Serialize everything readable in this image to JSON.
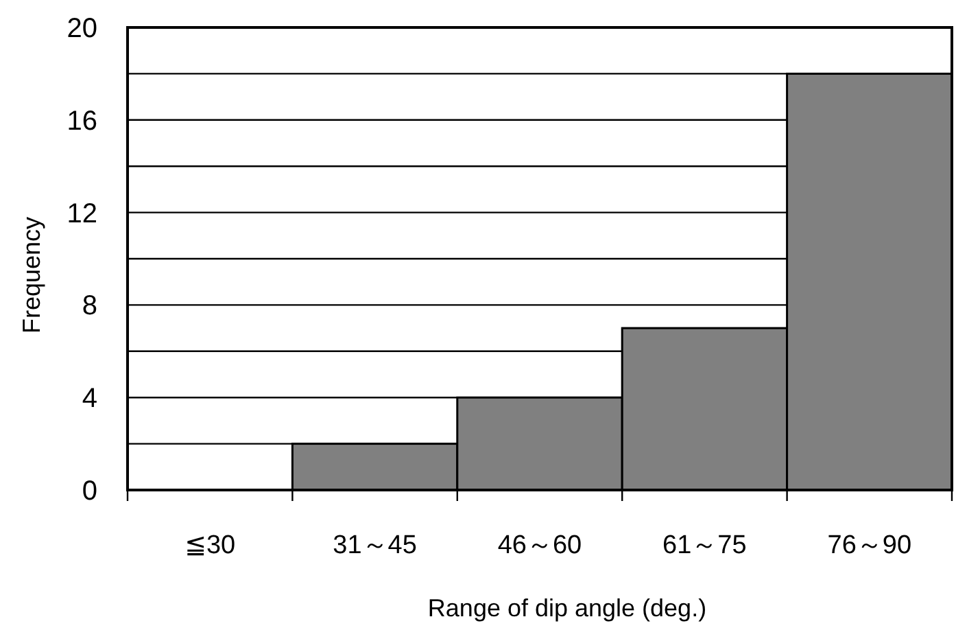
{
  "chart_data": {
    "type": "bar",
    "xlabel": "Range of dip angle (deg.)",
    "ylabel": "Frequency",
    "categories": [
      "≦30",
      "31～45",
      "46～60",
      "61～75",
      "76～90"
    ],
    "values": [
      0,
      2,
      4,
      7,
      18
    ],
    "color": "#808080",
    "ylim": [
      0,
      20
    ],
    "yticks": [
      0,
      {
        "value": 2,
        "label": null
      },
      4,
      {
        "value": 6,
        "label": null
      },
      8,
      {
        "value": 10,
        "label": null
      },
      12,
      {
        "value": 14,
        "label": null
      },
      16,
      {
        "value": 18,
        "label": null
      },
      20
    ],
    "grid": "y"
  }
}
